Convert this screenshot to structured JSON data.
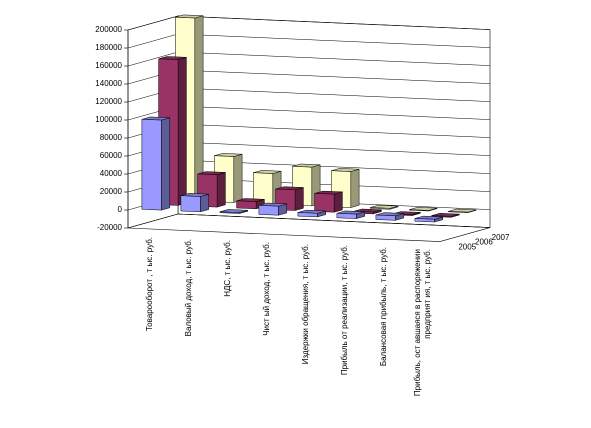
{
  "chart_data": {
    "type": "bar3d",
    "categories": [
      "Товарооборот , т ыс. руб.",
      "Валовый доход, т ыс. руб.",
      "НДС, т ыс. руб.",
      "Чист ый доход, т ыс. руб.",
      "Издержки обращения, т ыс. руб.",
      "Прибыль от реализации, т ыс. руб.",
      "Балансовая прибыль, т ыс. руб.",
      "Прибыль, ост авшаяся в распоряжении предприят ия, т ыс. руб."
    ],
    "series": [
      {
        "name": "2005",
        "color": "#9999ff",
        "values": [
          100000,
          17000,
          1000,
          10000,
          4000,
          5000,
          5000,
          3000
        ]
      },
      {
        "name": "2006",
        "color": "#993366",
        "values": [
          162000,
          36000,
          8000,
          23000,
          20000,
          2000,
          1000,
          1000
        ]
      },
      {
        "name": "2007",
        "color": "#ffffcc",
        "values": [
          203000,
          51000,
          34000,
          43000,
          40000,
          1000,
          500,
          500
        ]
      }
    ],
    "ylim": [
      -20000,
      200000
    ],
    "yticks": [
      -20000,
      0,
      20000,
      40000,
      60000,
      80000,
      100000,
      120000,
      140000,
      160000,
      180000,
      200000
    ],
    "grid": true
  }
}
